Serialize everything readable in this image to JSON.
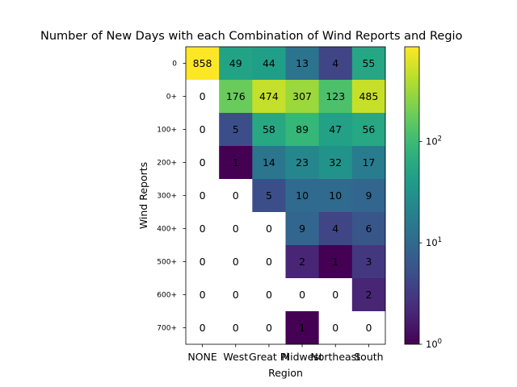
{
  "chart_data": {
    "type": "heatmap",
    "title": "Number of New Days with each Combination of Wind Reports and Regio",
    "xlabel": "Region",
    "ylabel": "Wind Reports",
    "x_categories": [
      "NONE",
      "West",
      "Great Pl",
      "Midwest",
      "Northeast",
      "South"
    ],
    "y_categories": [
      "0",
      "0+",
      "100+",
      "200+",
      "300+",
      "400+",
      "500+",
      "600+",
      "700+"
    ],
    "values": [
      [
        858,
        49,
        44,
        13,
        4,
        55
      ],
      [
        0,
        176,
        474,
        307,
        123,
        485
      ],
      [
        0,
        5,
        58,
        89,
        47,
        56
      ],
      [
        0,
        1,
        14,
        23,
        32,
        17
      ],
      [
        0,
        0,
        5,
        10,
        10,
        9
      ],
      [
        0,
        0,
        0,
        9,
        4,
        6
      ],
      [
        0,
        0,
        0,
        2,
        1,
        3
      ],
      [
        0,
        0,
        0,
        0,
        0,
        2
      ],
      [
        0,
        0,
        0,
        1,
        0,
        0
      ]
    ],
    "color_scale": "log",
    "colormap": "viridis",
    "zero_cells_color": "#ffffff",
    "colorbar": {
      "range": [
        1,
        858
      ],
      "ticks": [
        {
          "value": 1,
          "base": "10",
          "exp": "0"
        },
        {
          "value": 10,
          "base": "10",
          "exp": "1"
        },
        {
          "value": 100,
          "base": "10",
          "exp": "2"
        }
      ]
    },
    "grid": false,
    "legend": "none"
  }
}
